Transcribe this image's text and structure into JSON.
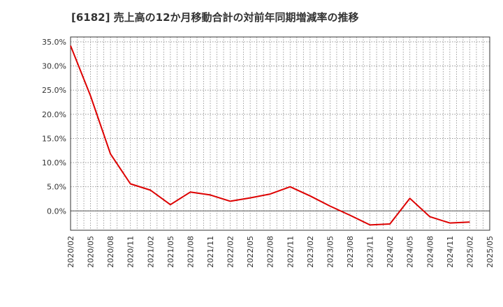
{
  "chart_data": {
    "type": "line",
    "title": "[6182]  売上高の12か月移動合計の対前年同期増減率の推移",
    "xlabel": "",
    "ylabel": "",
    "x_tick_labels": [
      "2020/02",
      "2020/05",
      "2020/08",
      "2020/11",
      "2021/02",
      "2021/05",
      "2021/08",
      "2021/11",
      "2022/02",
      "2022/05",
      "2022/08",
      "2022/11",
      "2023/02",
      "2023/05",
      "2023/08",
      "2023/11",
      "2024/02",
      "2024/05",
      "2024/08",
      "2024/11",
      "2025/02",
      "2025/05"
    ],
    "y_tick_labels": [
      "35.0%",
      "30.0%",
      "25.0%",
      "20.0%",
      "15.0%",
      "10.0%",
      "5.0%",
      "0.0%"
    ],
    "y_ticks": [
      35,
      30,
      25,
      20,
      15,
      10,
      5,
      0
    ],
    "ylim": [
      -4.0,
      36.0
    ],
    "grid": true,
    "line_color": "#dd0000",
    "series": [
      {
        "x": [
          "2020/02",
          "2020/05",
          "2020/08",
          "2020/11",
          "2021/02",
          "2021/05",
          "2021/08",
          "2021/11",
          "2022/02",
          "2022/05",
          "2022/08",
          "2022/11",
          "2023/02",
          "2023/05",
          "2023/08",
          "2023/11",
          "2024/02",
          "2024/05",
          "2024/08",
          "2024/11",
          "2025/02"
        ],
        "values": [
          34.2,
          23.8,
          11.8,
          5.6,
          4.3,
          1.3,
          3.9,
          3.3,
          2.0,
          2.7,
          3.5,
          5.0,
          3.1,
          1.0,
          -0.9,
          -2.9,
          -2.7,
          2.6,
          -1.2,
          -2.5,
          -2.3
        ]
      }
    ]
  }
}
